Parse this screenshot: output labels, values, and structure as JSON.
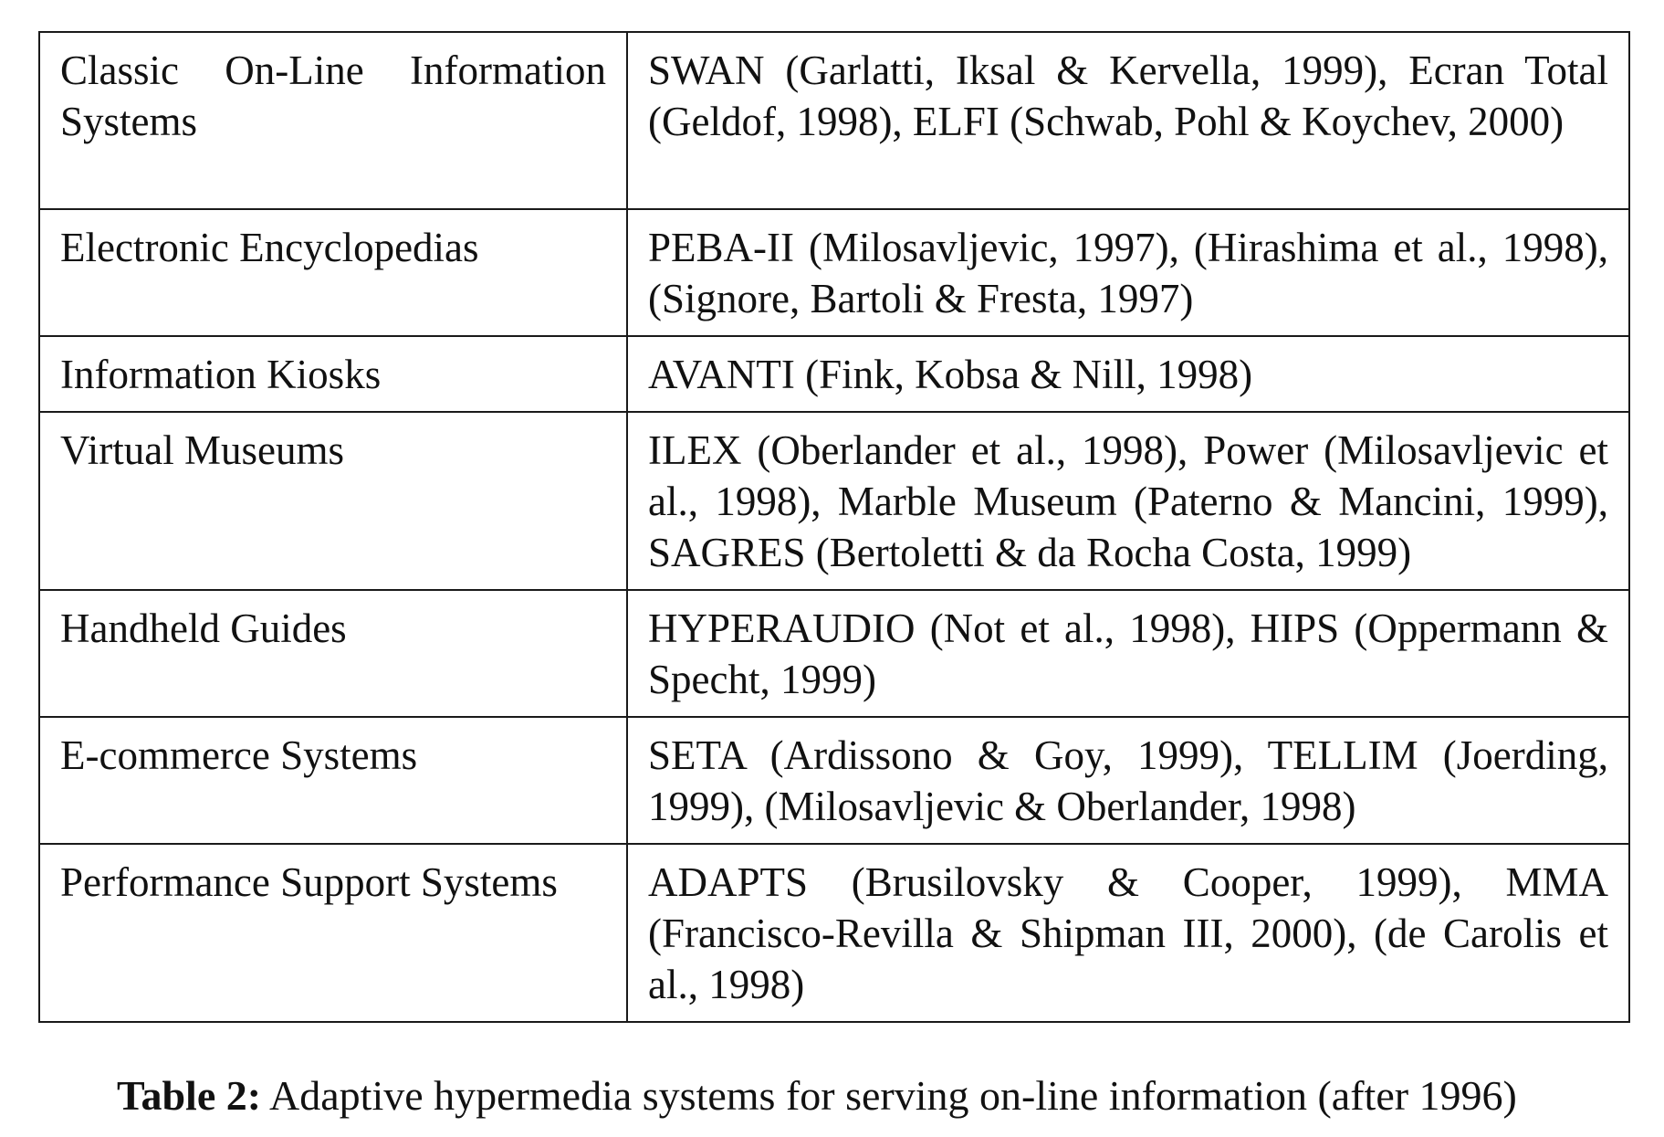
{
  "table": {
    "rows": [
      {
        "category": "Classic On-Line Information Systems",
        "systems": "SWAN (Garlatti, Iksal & Kervella, 1999), Ecran Total (Geldof, 1998), ELFI (Schwab, Pohl & Koychev, 2000)"
      },
      {
        "category": "Electronic Encyclopedias",
        "systems": "PEBA-II (Milosavljevic, 1997), (Hirashima et al., 1998), (Signore, Bartoli & Fresta, 1997)"
      },
      {
        "category": "Information Kiosks",
        "systems": "AVANTI (Fink, Kobsa & Nill, 1998)"
      },
      {
        "category": "Virtual Museums",
        "systems": "ILEX (Oberlander et al., 1998), Power (Milosavljevic et al., 1998), Marble Museum (Paterno & Mancini, 1999), SAGRES (Bertoletti & da Rocha Costa, 1999)"
      },
      {
        "category": "Handheld Guides",
        "systems": "HYPERAUDIO (Not et al., 1998), HIPS (Oppermann & Specht, 1999)"
      },
      {
        "category": "E-commerce Systems",
        "systems": "SETA (Ardissono & Goy, 1999), TELLIM (Joerding, 1999), (Milosavljevic & Oberlander, 1998)"
      },
      {
        "category": "Performance Support Systems",
        "systems": "ADAPTS (Brusilovsky & Cooper, 1999), MMA (Francisco-Revilla & Shipman III, 2000),  (de Carolis et al., 1998)"
      }
    ]
  },
  "caption": {
    "label": "Table 2:",
    "text": "Adaptive hypermedia systems for serving on-line information (after 1996)"
  }
}
